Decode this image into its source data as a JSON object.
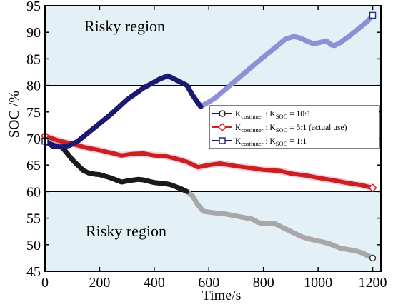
{
  "chart_data": {
    "type": "line",
    "xlabel": "Time/s",
    "ylabel": "SOC /%",
    "xlim": [
      0,
      1230
    ],
    "ylim": [
      45,
      95
    ],
    "x_ticks": [
      0,
      200,
      400,
      600,
      800,
      1000,
      1200
    ],
    "y_ticks": [
      45,
      50,
      55,
      60,
      65,
      70,
      75,
      80,
      85,
      90,
      95
    ],
    "regions": [
      {
        "label": "Risky region",
        "y_from": 80,
        "y_to": 95,
        "color": "#e3f0f6"
      },
      {
        "label": "Risky region",
        "y_from": 45,
        "y_to": 60,
        "color": "#e3f0f6"
      }
    ],
    "legend": {
      "placement": "center-right",
      "entries": [
        {
          "main": "K",
          "sub1": "costinner",
          "mid": " : K",
          "sub2": "SOC",
          "tail": " = 10:1"
        },
        {
          "main": "K",
          "sub1": "costinner",
          "mid": " : K",
          "sub2": "SOC",
          "tail": " = 5:1 (actual use)"
        },
        {
          "main": "K",
          "sub1": "costinner",
          "mid": " : K",
          "sub2": "SOC",
          "tail": " = 1:1"
        }
      ]
    },
    "series": [
      {
        "marker": "circle",
        "color_dark": "#1a1a1a",
        "color_light": "#a8a8a8",
        "color_switch_x": 520,
        "x": [
          0,
          20,
          40,
          60,
          80,
          100,
          120,
          140,
          160,
          180,
          200,
          240,
          280,
          300,
          340,
          360,
          400,
          440,
          460,
          500,
          520,
          540,
          560,
          580,
          620,
          660,
          700,
          740,
          760,
          780,
          800,
          820,
          840,
          860,
          880,
          900,
          940,
          960,
          1000,
          1020,
          1040,
          1060,
          1080,
          1100,
          1120,
          1140,
          1160,
          1180,
          1200
        ],
        "y": [
          70,
          69.5,
          69.2,
          68.5,
          67.3,
          66,
          65,
          64,
          63.5,
          63.3,
          63.2,
          62.6,
          61.8,
          62,
          62.3,
          62.2,
          61.7,
          61.5,
          61.3,
          60.5,
          60,
          59.2,
          57.5,
          56.3,
          56,
          55.8,
          55.4,
          55,
          54.8,
          54.2,
          54,
          54,
          54,
          53.5,
          53,
          52.5,
          51.5,
          51.2,
          50.7,
          50.5,
          50.2,
          49.8,
          49.4,
          49.2,
          49,
          48.8,
          48.5,
          48,
          47.5
        ]
      },
      {
        "marker": "diamond",
        "color": "#cc1f1f",
        "x": [
          0,
          50,
          100,
          150,
          200,
          250,
          280,
          320,
          360,
          400,
          440,
          480,
          520,
          560,
          600,
          640,
          700,
          760,
          800,
          860,
          900,
          960,
          1000,
          1060,
          1100,
          1160,
          1200
        ],
        "y": [
          70.5,
          69.6,
          69,
          68.3,
          67.8,
          67.2,
          66.8,
          67.1,
          67.2,
          66.8,
          66.7,
          66.2,
          65.6,
          64.6,
          65,
          65.3,
          64.8,
          64.4,
          64.1,
          63.9,
          63.4,
          63,
          62.6,
          62.1,
          61.7,
          61.2,
          60.7
        ]
      },
      {
        "marker": "square",
        "color_dark": "#1a1a6e",
        "color_light": "#8f8fd6",
        "color_switch_x": 600,
        "x": [
          0,
          30,
          60,
          90,
          120,
          180,
          240,
          300,
          360,
          420,
          450,
          470,
          520,
          540,
          570,
          620,
          700,
          780,
          840,
          880,
          910,
          930,
          980,
          1000,
          1030,
          1050,
          1060,
          1080,
          1120,
          1180,
          1200
        ],
        "y": [
          69.5,
          68.5,
          68.4,
          68.7,
          69.5,
          72,
          74.5,
          77.3,
          79.5,
          81.2,
          81.8,
          81.3,
          80,
          78.2,
          76,
          77.5,
          81,
          84.5,
          87,
          88.7,
          89.2,
          89,
          87.9,
          88,
          88.4,
          87.6,
          87.5,
          88,
          89.5,
          92,
          93.2
        ]
      }
    ]
  }
}
